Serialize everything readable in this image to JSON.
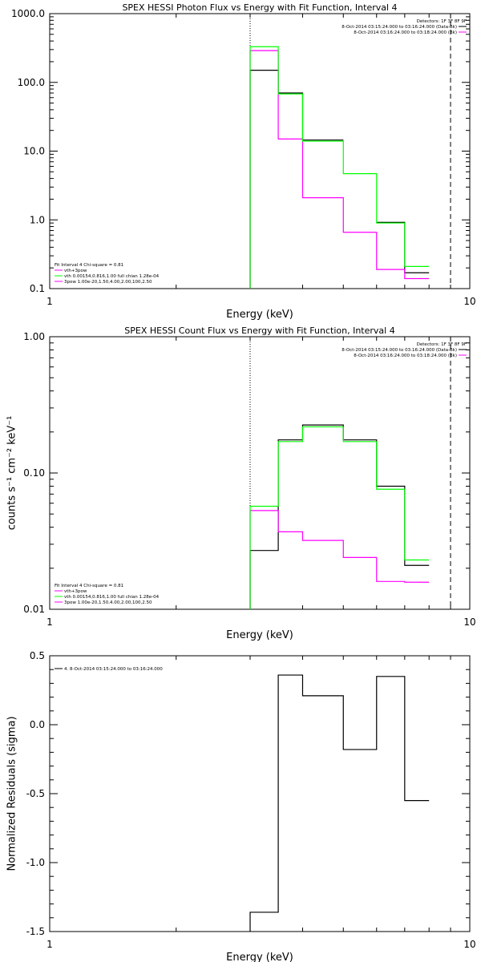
{
  "chart_data": [
    {
      "type": "line",
      "title": "SPEX HESSI Photon Flux vs Energy with Fit Function, Interval 4",
      "xlabel": "Energy (keV)",
      "ylabel": "",
      "xscale": "log",
      "yscale": "log",
      "xlim": [
        1,
        10
      ],
      "ylim": [
        0.1,
        1000
      ],
      "x_ticks": [
        "1",
        "10"
      ],
      "y_ticks": [
        "0.1",
        "1.0",
        "10.0",
        "100.0",
        "1000.0"
      ],
      "vlines": [
        {
          "x": 3.0,
          "style": "dotted"
        },
        {
          "x": 9.0,
          "style": "dashed"
        }
      ],
      "bin_edges": [
        3.0,
        3.5,
        4.0,
        5.0,
        6.0,
        7.0,
        8.0,
        9.0
      ],
      "series": [
        {
          "color": "#000000",
          "values": [
            150,
            70,
            14.5,
            null,
            0.92,
            0.17,
            null
          ]
        },
        {
          "color": "#ff00ff",
          "values": [
            290,
            15,
            2.1,
            0.66,
            0.19,
            0.14,
            null
          ]
        },
        {
          "color": "#00ff00",
          "values": [
            330,
            68,
            14.0,
            4.7,
            0.9,
            0.21,
            null
          ]
        }
      ],
      "legend_top_right": {
        "header": "Detectors: 1F 3F 8F 9F",
        "lines": [
          {
            "text": "8-Oct-2014 03:15:24.000 to 03:16:24.000 (Data-Bk)",
            "color": "#000000"
          },
          {
            "text": "8-Oct-2014 03:16:24.000 to 03:18:24.000 (Bk)",
            "color": "#ff00ff"
          }
        ]
      },
      "legend_bottom_left": {
        "header": "Fit Interval 4   Chi-square = 0.81",
        "lines": [
          {
            "text": "vth+3pow",
            "color": "#ff00ff"
          },
          {
            "text": "vth 0.00154,0.816,1.00  full chian 1.28e-04",
            "color": "#00ff00"
          },
          {
            "text": "3pow 1.00e-20,1.50,4.00,2.00,100,2.50",
            "color": "#ff00ff"
          }
        ]
      }
    },
    {
      "type": "line",
      "title": "SPEX HESSI Count Flux vs Energy with Fit Function, Interval 4",
      "xlabel": "Energy (keV)",
      "ylabel": "counts s⁻¹ cm⁻² keV⁻¹",
      "xscale": "log",
      "yscale": "log",
      "xlim": [
        1,
        10
      ],
      "ylim": [
        0.01,
        1
      ],
      "x_ticks": [
        "1",
        "10"
      ],
      "y_ticks": [
        "0.01",
        "0.10",
        "1.00"
      ],
      "vlines": [
        {
          "x": 3.0,
          "style": "dotted"
        },
        {
          "x": 9.0,
          "style": "dashed"
        }
      ],
      "bin_edges": [
        3.0,
        3.5,
        4.0,
        5.0,
        6.0,
        7.0,
        8.0,
        9.0
      ],
      "series": [
        {
          "color": "#000000",
          "values": [
            0.027,
            0.175,
            0.225,
            0.175,
            0.08,
            0.021,
            null
          ]
        },
        {
          "color": "#ff00ff",
          "values": [
            0.053,
            0.037,
            0.032,
            0.024,
            0.016,
            0.0158,
            null
          ]
        },
        {
          "color": "#00ff00",
          "values": [
            0.057,
            0.17,
            0.218,
            0.17,
            0.076,
            0.023,
            null
          ]
        }
      ],
      "legend_top_right": {
        "header": "Detectors: 1F 3F 8F 9F",
        "lines": [
          {
            "text": "8-Oct-2014 03:15:24.000 to 03:16:24.000 (Data-Bk)",
            "color": "#000000"
          },
          {
            "text": "8-Oct-2014 03:16:24.000 to 03:18:24.000 (Bk)",
            "color": "#ff00ff"
          }
        ]
      },
      "legend_bottom_left": {
        "header": "Fit Interval 4   Chi-square = 0.81",
        "lines": [
          {
            "text": "vth+3pow",
            "color": "#ff00ff"
          },
          {
            "text": "vth 0.00154,0.816,1.00  full chian 1.28e-04",
            "color": "#00ff00"
          },
          {
            "text": "3pow 1.00e-20,1.50,4.00,2.00,100,2.50",
            "color": "#ff00ff"
          }
        ]
      }
    },
    {
      "type": "line",
      "title": "",
      "xlabel": "Energy (keV)",
      "ylabel": "Normalized Residuals (sigma)",
      "xscale": "log",
      "yscale": "linear",
      "xlim": [
        1,
        10
      ],
      "ylim": [
        -1.5,
        0.5
      ],
      "x_ticks": [
        "1",
        "10"
      ],
      "y_ticks": [
        "-1.5",
        "-1.0",
        "-0.5",
        "0.0",
        "0.5"
      ],
      "vlines": [],
      "bin_edges": [
        3.0,
        3.5,
        4.0,
        5.0,
        6.0,
        7.0,
        8.0,
        9.0
      ],
      "series": [
        {
          "color": "#000000",
          "values": [
            -1.36,
            0.36,
            0.21,
            -0.18,
            0.35,
            -0.55,
            null
          ]
        }
      ],
      "legend_top_left": {
        "header": "",
        "lines": [
          {
            "text": "4.  8-Oct-2014 03:15:24.000 to 03:16:24.000",
            "color": "#000000"
          }
        ]
      }
    }
  ]
}
